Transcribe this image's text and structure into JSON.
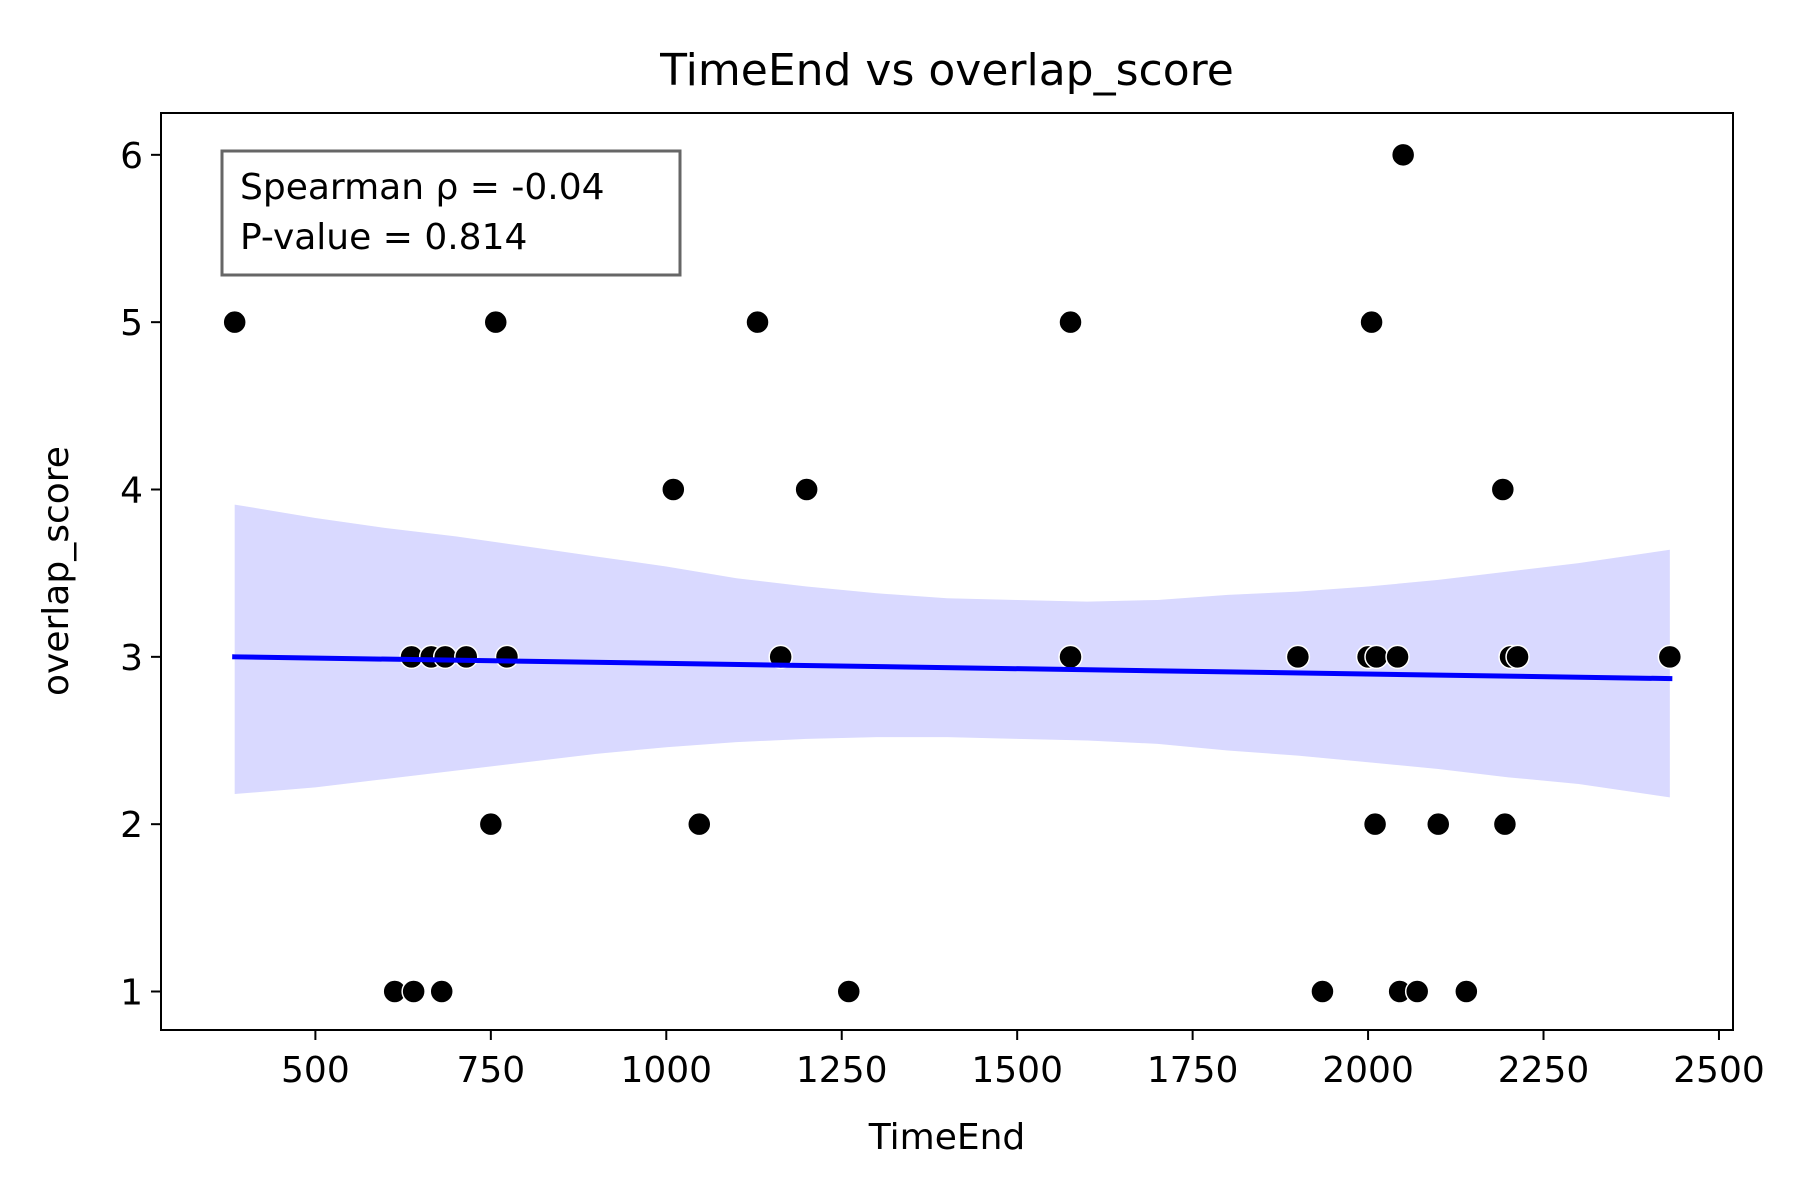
{
  "chart_data": {
    "type": "scatter",
    "title": "TimeEnd vs overlap_score",
    "xlabel": "TimeEnd",
    "ylabel": "overlap_score",
    "xlim": [
      280,
      2520
    ],
    "ylim": [
      0.77,
      6.25
    ],
    "xticks": [
      500,
      750,
      1000,
      1250,
      1500,
      1750,
      2000,
      2250,
      2500
    ],
    "yticks": [
      1,
      2,
      3,
      4,
      5,
      6
    ],
    "xtick_labels": [
      "500",
      "750",
      "1000",
      "1250",
      "1500",
      "1750",
      "2000",
      "2250",
      "2500"
    ],
    "ytick_labels": [
      "1",
      "2",
      "3",
      "4",
      "5",
      "6"
    ],
    "grid": false,
    "points": [
      {
        "x": 385,
        "y": 5
      },
      {
        "x": 757,
        "y": 5
      },
      {
        "x": 1130,
        "y": 5
      },
      {
        "x": 1576,
        "y": 5
      },
      {
        "x": 2005,
        "y": 5
      },
      {
        "x": 2050,
        "y": 6
      },
      {
        "x": 1010,
        "y": 4
      },
      {
        "x": 1200,
        "y": 4
      },
      {
        "x": 2192,
        "y": 4
      },
      {
        "x": 637,
        "y": 3
      },
      {
        "x": 665,
        "y": 3
      },
      {
        "x": 685,
        "y": 3
      },
      {
        "x": 715,
        "y": 3
      },
      {
        "x": 773,
        "y": 3
      },
      {
        "x": 1163,
        "y": 3
      },
      {
        "x": 1576,
        "y": 3
      },
      {
        "x": 1900,
        "y": 3
      },
      {
        "x": 2000,
        "y": 3
      },
      {
        "x": 2012,
        "y": 3
      },
      {
        "x": 2042,
        "y": 3
      },
      {
        "x": 2203,
        "y": 3
      },
      {
        "x": 2213,
        "y": 3
      },
      {
        "x": 2430,
        "y": 3
      },
      {
        "x": 750,
        "y": 2
      },
      {
        "x": 1047,
        "y": 2
      },
      {
        "x": 2010,
        "y": 2
      },
      {
        "x": 2100,
        "y": 2
      },
      {
        "x": 2195,
        "y": 2
      },
      {
        "x": 613,
        "y": 1
      },
      {
        "x": 640,
        "y": 1
      },
      {
        "x": 680,
        "y": 1
      },
      {
        "x": 1260,
        "y": 1
      },
      {
        "x": 1935,
        "y": 1
      },
      {
        "x": 2045,
        "y": 1
      },
      {
        "x": 2070,
        "y": 1
      },
      {
        "x": 2140,
        "y": 1
      }
    ],
    "regression_line": {
      "x": [
        385,
        2430
      ],
      "y": [
        3.0,
        2.87
      ]
    },
    "confidence_band": {
      "x": [
        385,
        500,
        600,
        700,
        800,
        900,
        1000,
        1100,
        1200,
        1300,
        1400,
        1500,
        1600,
        1700,
        1800,
        1900,
        2000,
        2100,
        2200,
        2300,
        2430
      ],
      "upper": [
        3.91,
        3.83,
        3.77,
        3.72,
        3.66,
        3.6,
        3.54,
        3.47,
        3.42,
        3.38,
        3.35,
        3.34,
        3.33,
        3.34,
        3.37,
        3.39,
        3.42,
        3.46,
        3.51,
        3.56,
        3.64
      ],
      "lower": [
        2.18,
        2.22,
        2.27,
        2.32,
        2.37,
        2.42,
        2.46,
        2.49,
        2.51,
        2.52,
        2.52,
        2.51,
        2.5,
        2.48,
        2.44,
        2.41,
        2.37,
        2.33,
        2.28,
        2.24,
        2.16
      ]
    },
    "stats": {
      "line1": "Spearman ρ = -0.04",
      "line2": "P-value = 0.814",
      "placement": "top-left"
    },
    "colors": {
      "points": "#000000",
      "line": "#0000ff",
      "band": "#d9d9ff",
      "axes": "#000000",
      "stats_box_edge": "#666666"
    }
  }
}
